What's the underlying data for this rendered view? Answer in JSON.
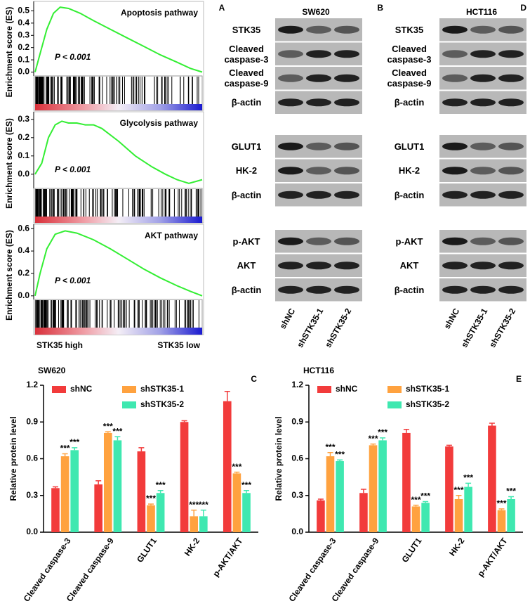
{
  "gsea_panel": {
    "letter": "A",
    "low_label": "STK35 low",
    "high_label": "STK35 high"
  },
  "chart_data": [
    {
      "type": "line",
      "title": "Apoptosis pathway",
      "annotation": "P < 0.001",
      "ylabel": "Enrichment score (ES)",
      "color": "#33ee33",
      "x": [
        0,
        3,
        7,
        11,
        15,
        20,
        27,
        35,
        45,
        55,
        65,
        75,
        85,
        93,
        100
      ],
      "values": [
        0,
        0.15,
        0.35,
        0.48,
        0.53,
        0.52,
        0.48,
        0.42,
        0.35,
        0.28,
        0.21,
        0.14,
        0.08,
        0.03,
        0
      ],
      "xlim": [
        0,
        100
      ],
      "ylim": [
        -0.02,
        0.56
      ],
      "yticks": [
        {
          "value": 0,
          "label": "0.0"
        },
        0.1,
        0.2,
        0.3,
        0.4,
        0.5
      ]
    },
    {
      "type": "line",
      "title": "Glycolysis pathway",
      "annotation": "P < 0.001",
      "ylabel": "Enrichment score (ES)",
      "color": "#33ee33",
      "x": [
        0,
        4,
        8,
        12,
        16,
        20,
        25,
        30,
        35,
        40,
        50,
        60,
        70,
        78,
        85,
        92,
        100
      ],
      "values": [
        0,
        0.06,
        0.2,
        0.27,
        0.29,
        0.28,
        0.28,
        0.27,
        0.27,
        0.25,
        0.18,
        0.1,
        0.04,
        0,
        -0.03,
        -0.05,
        -0.03
      ],
      "xlim": [
        0,
        100
      ],
      "ylim": [
        -0.07,
        0.33
      ],
      "yticks": [
        {
          "value": 0,
          "label": "0.0"
        },
        0.1,
        0.2,
        0.3
      ]
    },
    {
      "type": "line",
      "title": "AKT pathway",
      "annotation": "P < 0.001",
      "ylabel": "Enrichment score (ES)",
      "color": "#33ee33",
      "x": [
        0,
        3,
        7,
        12,
        18,
        25,
        35,
        45,
        55,
        65,
        75,
        85,
        93,
        100
      ],
      "values": [
        0,
        0.2,
        0.42,
        0.55,
        0.58,
        0.56,
        0.5,
        0.42,
        0.33,
        0.24,
        0.16,
        0.09,
        0.04,
        0
      ],
      "xlim": [
        0,
        100
      ],
      "ylim": [
        -0.02,
        0.62
      ],
      "yticks": [
        {
          "value": 0,
          "label": "0.0"
        },
        0.2,
        0.4,
        0.6
      ]
    },
    {
      "type": "bar",
      "title": "SW620",
      "letter": "C",
      "ylabel": "Relative protein level",
      "categories": [
        "Cleaved caspase-3",
        "Cleaved caspase-9",
        "GLUT1",
        "HK-2",
        "p-AKT/AKT"
      ],
      "series": [
        {
          "name": "shNC",
          "color": "#f23b3b",
          "values": [
            0.36,
            0.39,
            0.66,
            0.9,
            1.07
          ],
          "errors": [
            0.01,
            0.03,
            0.03,
            0.01,
            0.08
          ]
        },
        {
          "name": "shSTK35-1",
          "color": "#ffa23f",
          "values": [
            0.62,
            0.81,
            0.22,
            0.13,
            0.48
          ],
          "errors": [
            0.02,
            0.01,
            0.01,
            0.05,
            0.01
          ],
          "significance": [
            "***",
            "***",
            "***",
            "***",
            "***"
          ]
        },
        {
          "name": "shSTK35-2",
          "color": "#3fe8b0",
          "values": [
            0.67,
            0.75,
            0.32,
            0.13,
            0.32
          ],
          "errors": [
            0.02,
            0.03,
            0.02,
            0.05,
            0.02
          ],
          "significance": [
            "***",
            "***",
            "***",
            "***",
            "***"
          ]
        }
      ],
      "ylim": [
        0,
        1.2
      ],
      "yticks": [
        {
          "value": 0,
          "label": "0.0"
        },
        0.3,
        0.6,
        0.9,
        1.2
      ]
    },
    {
      "type": "bar",
      "title": "HCT116",
      "letter": "E",
      "ylabel": "Relative protein level",
      "categories": [
        "Cleaved caspase-3",
        "Cleaved caspase-9",
        "GLUT1",
        "HK-2",
        "p-AKT/AKT"
      ],
      "series": [
        {
          "name": "shNC",
          "color": "#f23b3b",
          "values": [
            0.26,
            0.32,
            0.81,
            0.7,
            0.87
          ],
          "errors": [
            0.01,
            0.03,
            0.03,
            0.01,
            0.02
          ]
        },
        {
          "name": "shSTK35-1",
          "color": "#ffa23f",
          "values": [
            0.62,
            0.71,
            0.21,
            0.27,
            0.18
          ],
          "errors": [
            0.03,
            0.01,
            0.01,
            0.03,
            0.01
          ],
          "significance": [
            "***",
            "***",
            "***",
            "***",
            "***"
          ]
        },
        {
          "name": "shSTK35-2",
          "color": "#3fe8b0",
          "values": [
            0.58,
            0.75,
            0.24,
            0.37,
            0.27
          ],
          "errors": [
            0.01,
            0.02,
            0.01,
            0.03,
            0.02
          ],
          "significance": [
            "***",
            "***",
            "***",
            "***",
            "***"
          ]
        }
      ],
      "ylim": [
        0,
        1.2
      ],
      "yticks": [
        {
          "value": 0,
          "label": "0.0"
        },
        0.3,
        0.6,
        0.9,
        1.2
      ]
    }
  ],
  "blots": [
    {
      "cell_line": "SW620",
      "letter": "B",
      "lanes": [
        "shNC",
        "shSTK35-1",
        "shSTK35-2"
      ],
      "groups": [
        [
          "STK35",
          "Cleaved caspase-3",
          "Cleaved caspase-9",
          "β-actin"
        ],
        [
          "GLUT1",
          "HK-2",
          "β-actin"
        ],
        [
          "p-AKT",
          "AKT",
          "β-actin"
        ]
      ]
    },
    {
      "cell_line": "HCT116",
      "letter": "D",
      "lanes": [
        "shNC",
        "shSTK35-1",
        "shSTK35-2"
      ],
      "groups": [
        [
          "STK35",
          "Cleaved caspase-3",
          "Cleaved caspase-9",
          "β-actin"
        ],
        [
          "GLUT1",
          "HK-2",
          "β-actin"
        ],
        [
          "p-AKT",
          "AKT",
          "β-actin"
        ]
      ]
    }
  ]
}
